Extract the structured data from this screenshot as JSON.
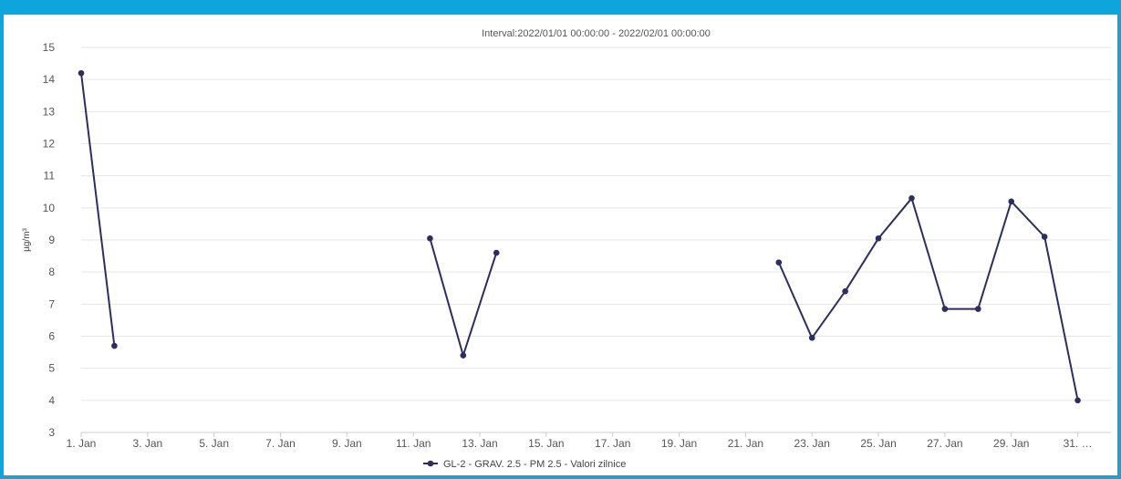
{
  "frame_color": "#0ea5dd",
  "chart_data": {
    "type": "line",
    "title": "Interval:2022/01/01 00:00:00 - 2022/02/01 00:00:00",
    "xlabel": "",
    "ylabel": "µg/m³",
    "ylim": [
      3,
      15
    ],
    "yticks": [
      3,
      4,
      5,
      6,
      7,
      8,
      9,
      10,
      11,
      12,
      13,
      14,
      15
    ],
    "xlim": [
      1,
      32
    ],
    "x_tick_labels": [
      {
        "day": 1,
        "label": "1. Jan"
      },
      {
        "day": 3,
        "label": "3. Jan"
      },
      {
        "day": 5,
        "label": "5. Jan"
      },
      {
        "day": 7,
        "label": "7. Jan"
      },
      {
        "day": 9,
        "label": "9. Jan"
      },
      {
        "day": 11,
        "label": "11. Jan"
      },
      {
        "day": 13,
        "label": "13. Jan"
      },
      {
        "day": 15,
        "label": "15. Jan"
      },
      {
        "day": 17,
        "label": "17. Jan"
      },
      {
        "day": 19,
        "label": "19. Jan"
      },
      {
        "day": 21,
        "label": "21. Jan"
      },
      {
        "day": 23,
        "label": "23. Jan"
      },
      {
        "day": 25,
        "label": "25. Jan"
      },
      {
        "day": 27,
        "label": "27. Jan"
      },
      {
        "day": 29,
        "label": "29. Jan"
      },
      {
        "day": 31,
        "label": "31. …"
      }
    ],
    "grid": true,
    "legend_position": "bottom-center",
    "series": [
      {
        "name": "GL-2 - GRAV. 2.5 - PM 2.5 - Valori zilnice",
        "color": "#2e2e5e",
        "points": [
          {
            "day": 1,
            "value": 14.2
          },
          {
            "day": 2,
            "value": 5.7
          },
          {
            "day": 3,
            "value": null
          },
          {
            "day": 11,
            "value": null
          },
          {
            "day": 11.5,
            "value": 9.05
          },
          {
            "day": 12.5,
            "value": 5.4
          },
          {
            "day": 13.5,
            "value": 8.6
          },
          {
            "day": 14,
            "value": null
          },
          {
            "day": 22,
            "value": 8.3
          },
          {
            "day": 23,
            "value": 5.95
          },
          {
            "day": 24,
            "value": 7.4
          },
          {
            "day": 25,
            "value": 9.05
          },
          {
            "day": 26,
            "value": 10.3
          },
          {
            "day": 27,
            "value": 6.85
          },
          {
            "day": 28,
            "value": 6.85
          },
          {
            "day": 29,
            "value": 10.2
          },
          {
            "day": 30,
            "value": 9.1
          },
          {
            "day": 31,
            "value": 4.0
          }
        ]
      }
    ]
  }
}
